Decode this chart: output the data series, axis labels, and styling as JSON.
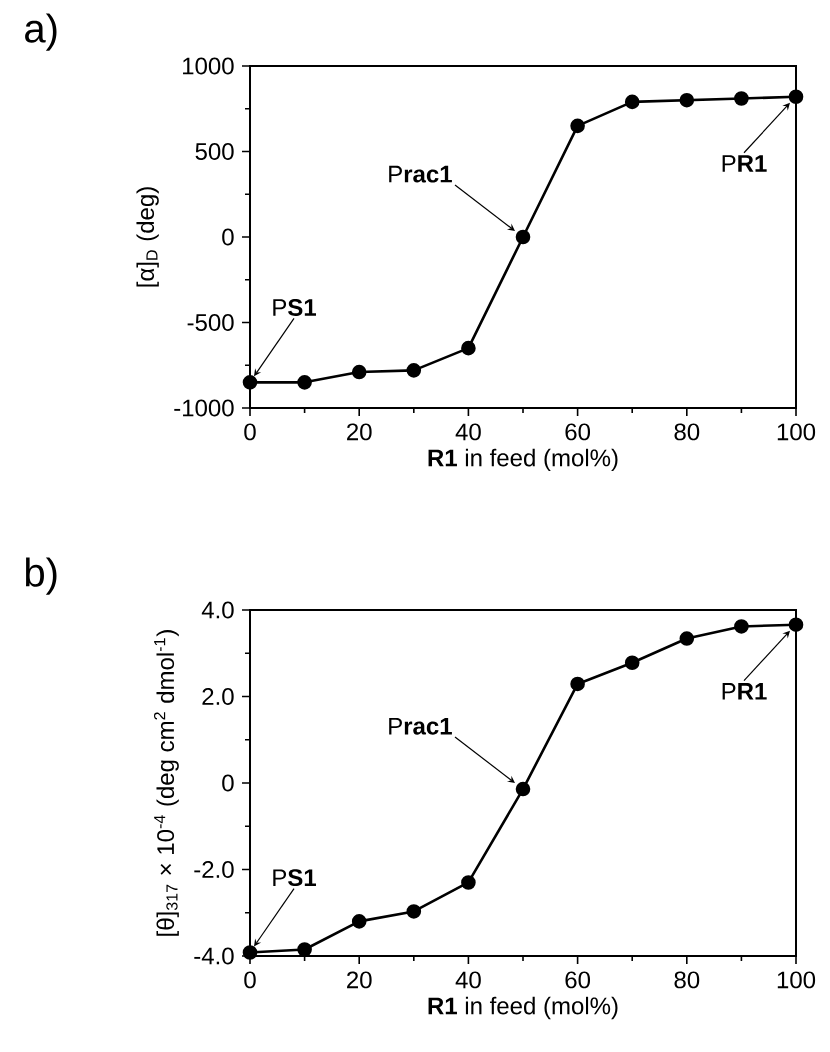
{
  "chart_data": [
    {
      "type": "line",
      "title": "a)",
      "xlabel": "**R1** in feed (mol%)",
      "ylabel": "[α]$_{D}$ (deg)",
      "x": [
        0,
        10,
        20,
        30,
        40,
        50,
        60,
        70,
        80,
        90,
        100
      ],
      "series": [
        {
          "color": "#000000",
          "values": [
            -850,
            -850,
            -790,
            -780,
            -650,
            0,
            650,
            790,
            800,
            810,
            820
          ]
        }
      ],
      "xlim": [
        0,
        100
      ],
      "ylim": [
        -1000,
        1000
      ],
      "xticks": [
        0,
        20,
        40,
        60,
        80,
        100
      ],
      "yticks": [
        -1000,
        -500,
        0,
        500,
        1000
      ],
      "marker": "circle",
      "line_style": "solid",
      "annotations": [
        {
          "text": "P**S1**",
          "x": 0,
          "y": -850
        },
        {
          "text": "P**rac1**",
          "x": 50,
          "y": 0
        },
        {
          "text": "P**R1**",
          "x": 100,
          "y": 820
        }
      ]
    },
    {
      "type": "line",
      "title": "b)",
      "xlabel": "**R1** in feed (mol%)",
      "ylabel": "[θ]$_{317}$ × 10$^{-4}$ (deg cm$^{2}$ dmol$^{-1}$)",
      "x": [
        0,
        10,
        20,
        30,
        40,
        50,
        60,
        70,
        80,
        90,
        100
      ],
      "series": [
        {
          "color": "#000000",
          "values": [
            -3.92,
            -3.85,
            -3.2,
            -2.97,
            -2.3,
            -0.14,
            2.29,
            2.78,
            3.34,
            3.62,
            3.66
          ]
        }
      ],
      "xlim": [
        0,
        100
      ],
      "ylim": [
        -4,
        4
      ],
      "xticks": [
        0,
        20,
        40,
        60,
        80,
        100
      ],
      "yticks": [
        {
          "value": -4,
          "label": "-4.0"
        },
        {
          "value": -2,
          "label": "-2.0"
        },
        0,
        {
          "value": 2,
          "label": "2.0"
        },
        {
          "value": 4,
          "label": "4.0"
        }
      ],
      "marker": "circle",
      "line_style": "solid",
      "annotations": [
        {
          "text": "P**S1**",
          "x": 0,
          "y": -3.92
        },
        {
          "text": "P**rac1**",
          "x": 50,
          "y": -0.14
        },
        {
          "text": "P**R1**",
          "x": 100,
          "y": 3.66
        }
      ]
    }
  ]
}
